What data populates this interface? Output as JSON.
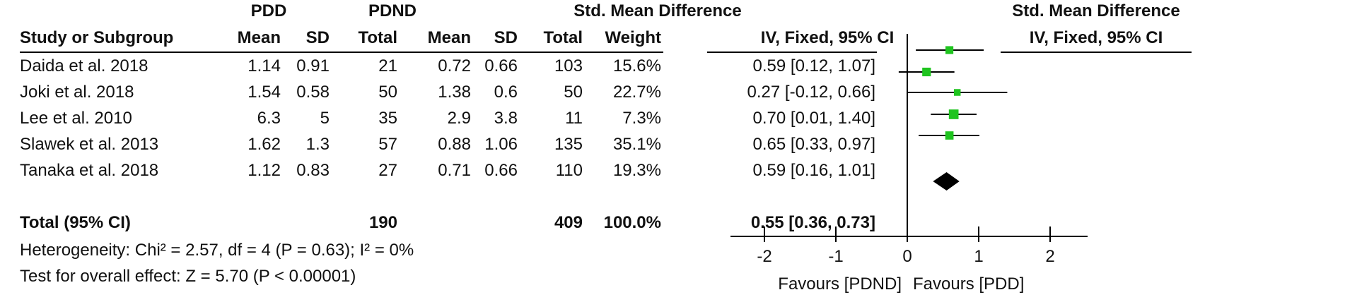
{
  "headers": {
    "group1": "PDD",
    "group2": "PDND",
    "effect_table": "Std. Mean Difference",
    "effect_table_sub": "IV, Fixed, 95% CI",
    "effect_plot": "Std. Mean Difference",
    "effect_plot_sub": "IV, Fixed, 95% CI",
    "study": "Study or Subgroup",
    "mean1": "Mean",
    "sd1": "SD",
    "total1": "Total",
    "mean2": "Mean",
    "sd2": "SD",
    "total2": "Total",
    "weight": "Weight"
  },
  "rows": [
    {
      "study": "Daida et al. 2018",
      "mean1": "1.14",
      "sd1": "0.91",
      "total1": "21",
      "mean2": "0.72",
      "sd2": "0.66",
      "total2": "103",
      "weight": "15.6%",
      "ci": "0.59 [0.12, 1.07]"
    },
    {
      "study": "Joki et al. 2018",
      "mean1": "1.54",
      "sd1": "0.58",
      "total1": "50",
      "mean2": "1.38",
      "sd2": "0.6",
      "total2": "50",
      "weight": "22.7%",
      "ci": "0.27 [-0.12, 0.66]"
    },
    {
      "study": "Lee et al. 2010",
      "mean1": "6.3",
      "sd1": "5",
      "total1": "35",
      "mean2": "2.9",
      "sd2": "3.8",
      "total2": "11",
      "weight": "7.3%",
      "ci": "0.70 [0.01, 1.40]"
    },
    {
      "study": "Slawek et al. 2013",
      "mean1": "1.62",
      "sd1": "1.3",
      "total1": "57",
      "mean2": "0.88",
      "sd2": "1.06",
      "total2": "135",
      "weight": "35.1%",
      "ci": "0.65 [0.33, 0.97]"
    },
    {
      "study": "Tanaka et al. 2018",
      "mean1": "1.12",
      "sd1": "0.83",
      "total1": "27",
      "mean2": "0.71",
      "sd2": "0.66",
      "total2": "110",
      "weight": "19.3%",
      "ci": "0.59 [0.16, 1.01]"
    }
  ],
  "total": {
    "label": "Total (95% CI)",
    "total1": "190",
    "total2": "409",
    "weight": "100.0%",
    "ci": "0.55 [0.36, 0.73]"
  },
  "footer": {
    "heterogeneity": "Heterogeneity: Chi² = 2.57, df = 4 (P = 0.63); I² = 0%",
    "overall": "Test for overall effect: Z = 5.70 (P < 0.00001)"
  },
  "colors": {
    "marker": "#1fc41f",
    "diamond": "#000000",
    "line": "#000000"
  },
  "chart_data": {
    "type": "forest",
    "xlim": [
      -2.5,
      2.5
    ],
    "xticks": [
      -2,
      -1,
      0,
      1,
      2
    ],
    "xtick_labels": [
      "-2",
      "-1",
      "0",
      "1",
      "2"
    ],
    "favours_left": "Favours [PDND]",
    "favours_right": "Favours [PDD]",
    "studies": [
      {
        "name": "Daida et al. 2018",
        "est": 0.59,
        "lo": 0.12,
        "hi": 1.07,
        "weight": 15.6
      },
      {
        "name": "Joki et al. 2018",
        "est": 0.27,
        "lo": -0.12,
        "hi": 0.66,
        "weight": 22.7
      },
      {
        "name": "Lee et al. 2010",
        "est": 0.7,
        "lo": 0.01,
        "hi": 1.4,
        "weight": 7.3
      },
      {
        "name": "Slawek et al. 2013",
        "est": 0.65,
        "lo": 0.33,
        "hi": 0.97,
        "weight": 35.1
      },
      {
        "name": "Tanaka et al. 2018",
        "est": 0.59,
        "lo": 0.16,
        "hi": 1.01,
        "weight": 19.3
      }
    ],
    "pooled": {
      "est": 0.55,
      "lo": 0.36,
      "hi": 0.73
    }
  }
}
